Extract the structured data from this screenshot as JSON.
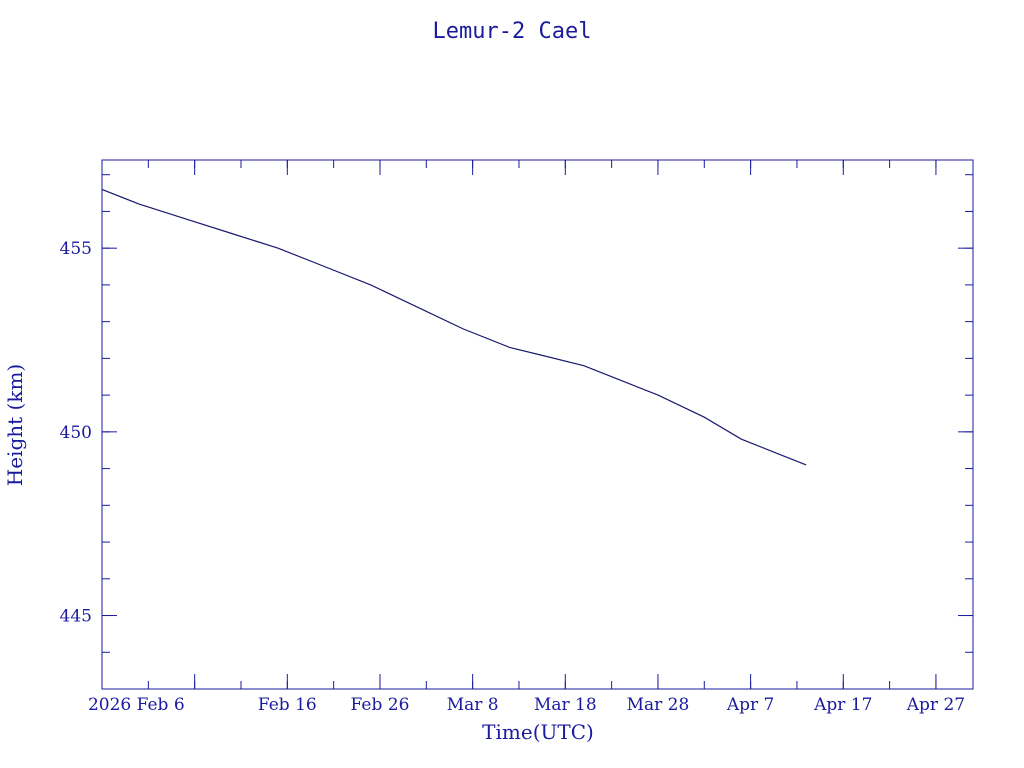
{
  "chart_data": {
    "type": "line",
    "title": "Lemur-2 Cael",
    "xlabel": "Time(UTC)",
    "ylabel": "Height (km)",
    "x_type": "date",
    "xlim": [
      "2026-01-27",
      "2026-05-01"
    ],
    "ylim": [
      443,
      457.4
    ],
    "x_ticks": [
      {
        "date": "2026-02-06",
        "label": "2026 Feb  6"
      },
      {
        "date": "2026-02-16",
        "label": "Feb 16"
      },
      {
        "date": "2026-02-26",
        "label": "Feb 26"
      },
      {
        "date": "2026-03-08",
        "label": "Mar  8"
      },
      {
        "date": "2026-03-18",
        "label": "Mar 18"
      },
      {
        "date": "2026-03-28",
        "label": "Mar 28"
      },
      {
        "date": "2026-04-07",
        "label": "Apr  7"
      },
      {
        "date": "2026-04-17",
        "label": "Apr 17"
      },
      {
        "date": "2026-04-27",
        "label": "Apr 27"
      }
    ],
    "y_ticks": [
      445,
      450,
      455
    ],
    "grid": false,
    "line_color": "#1a1a6e",
    "axis_color": "#1a1a9e",
    "series": [
      {
        "x": [
          "2026-01-27",
          "2026-01-31",
          "2026-02-05",
          "2026-02-10",
          "2026-02-15",
          "2026-02-20",
          "2026-02-25",
          "2026-03-02",
          "2026-03-07",
          "2026-03-12",
          "2026-03-16",
          "2026-03-20",
          "2026-03-23",
          "2026-03-28",
          "2026-04-02",
          "2026-04-06",
          "2026-04-10",
          "2026-04-13"
        ],
        "y": [
          456.6,
          456.2,
          455.8,
          455.4,
          455.0,
          454.5,
          454.0,
          453.4,
          452.8,
          452.3,
          452.05,
          451.8,
          451.5,
          451.0,
          450.4,
          449.8,
          449.4,
          449.1
        ]
      }
    ]
  }
}
